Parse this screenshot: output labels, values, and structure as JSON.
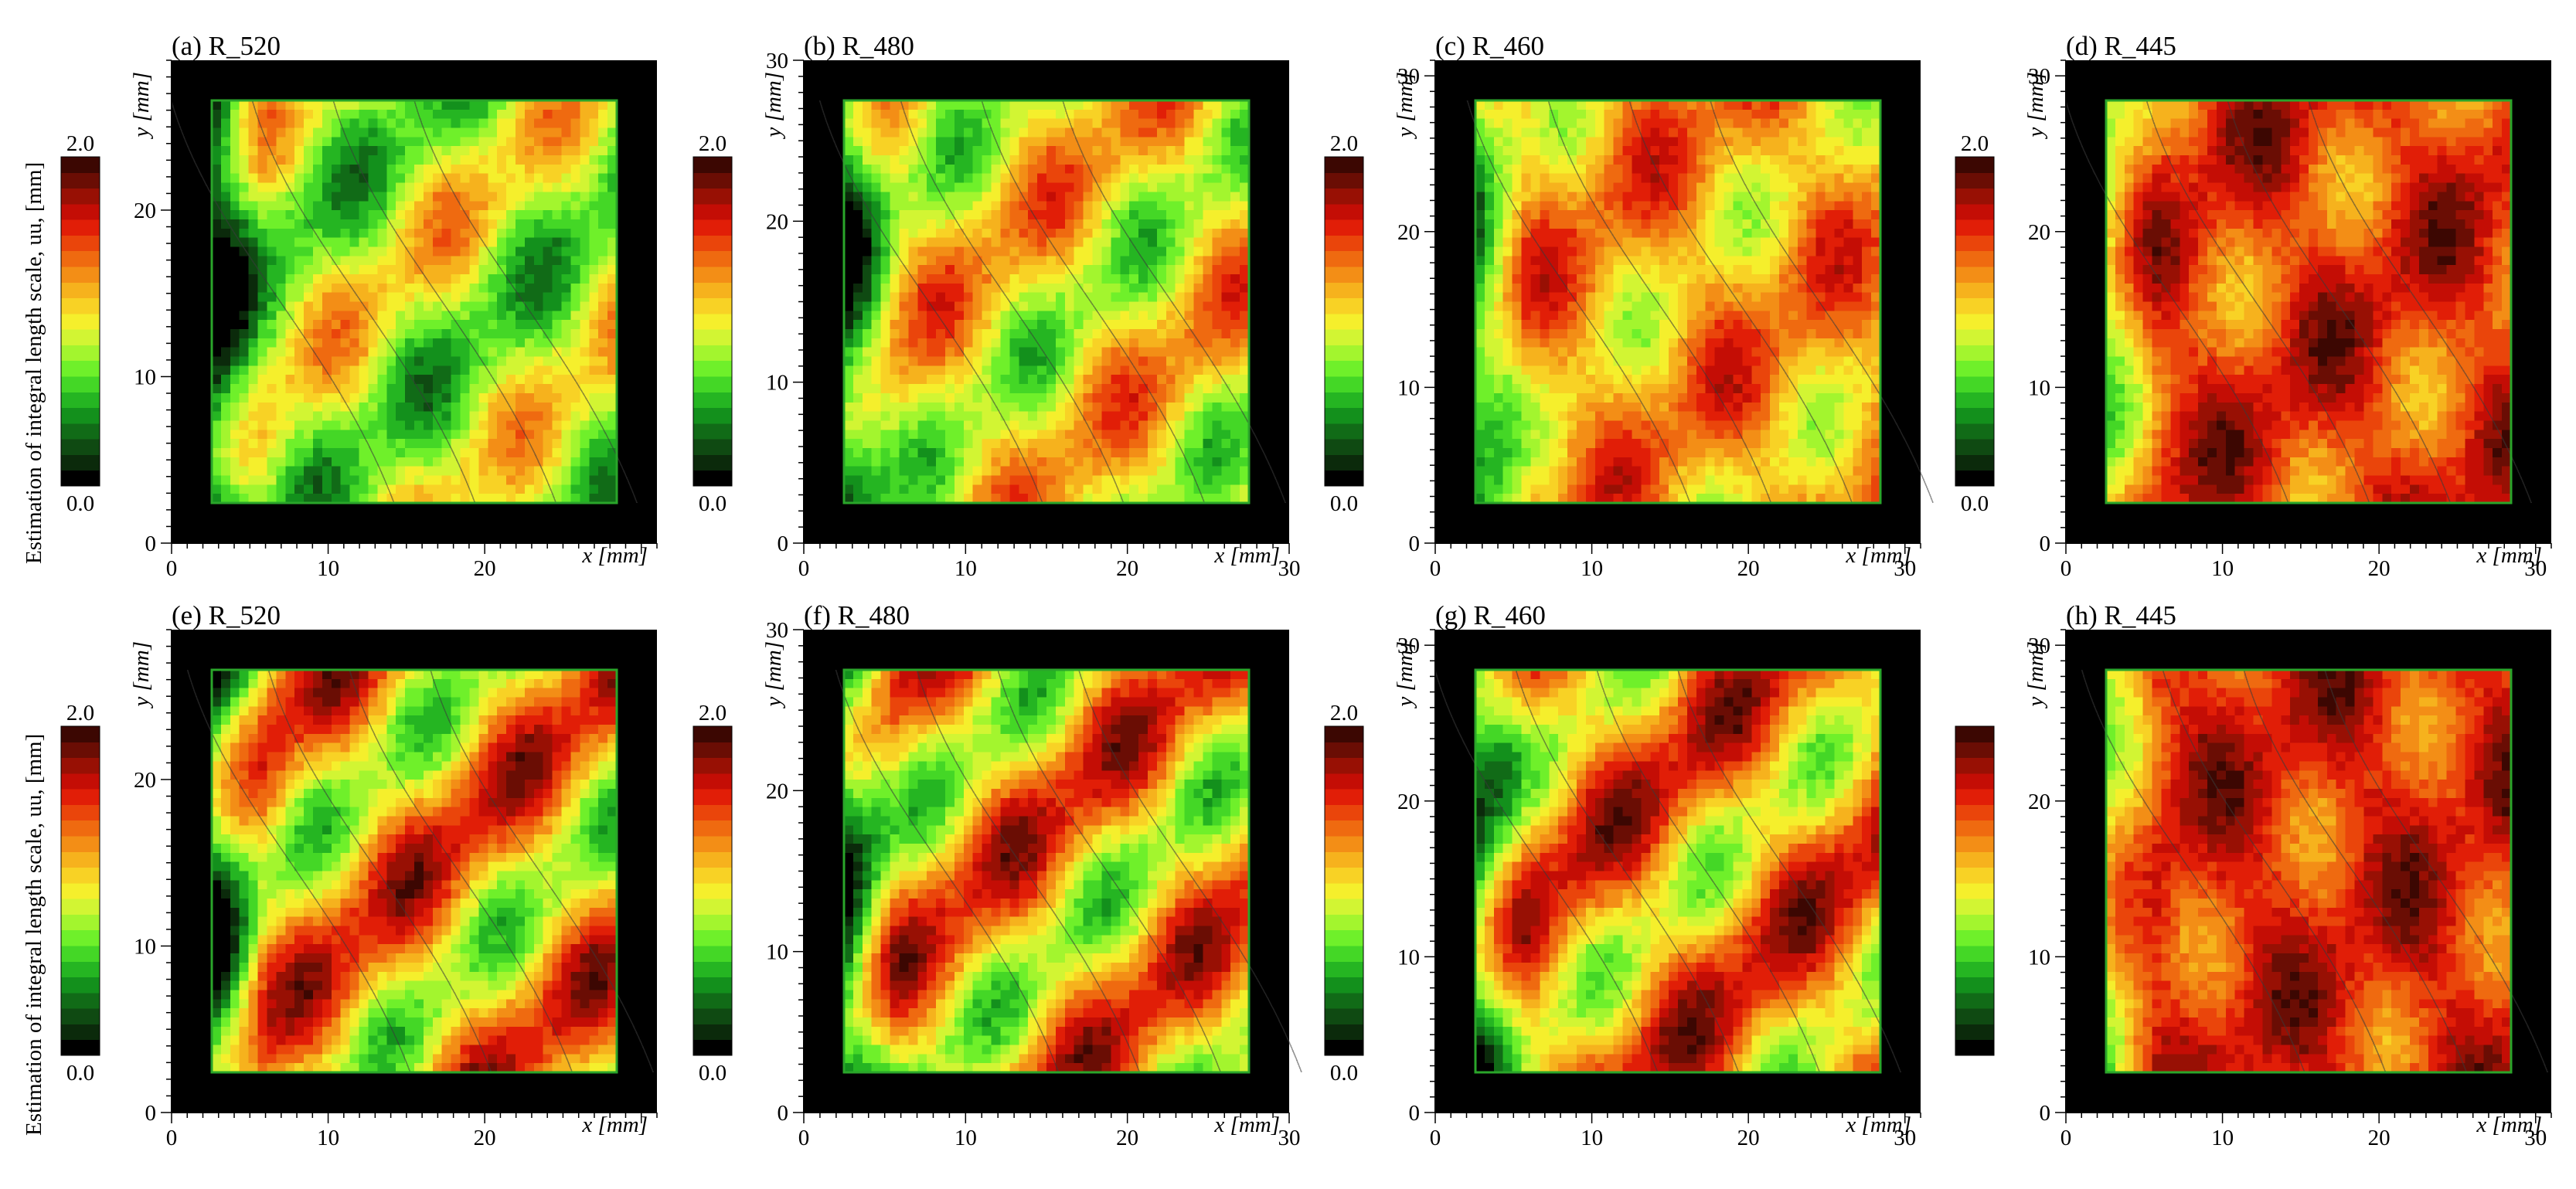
{
  "figure": {
    "row_ylabels": [
      "Estimation of integral length scale, uu, [mm]",
      "Estimation of integral length scale, uu, [mm]"
    ]
  },
  "chart_data": [
    {
      "type": "heatmap",
      "panel_label": "(a)",
      "title": "R_520",
      "xlabel": "x [mm]",
      "ylabel": "y [mm]",
      "xlim": [
        0,
        31
      ],
      "ylim": [
        0,
        29
      ],
      "xticks": [
        "0",
        "10",
        "20"
      ],
      "yticks": [
        "0",
        "10",
        "20"
      ],
      "colorbar": {
        "min": "0.0",
        "max": "2.0",
        "range": [
          0,
          2
        ]
      },
      "level": 0.85,
      "stripe": 0.4
    },
    {
      "type": "heatmap",
      "panel_label": "(b)",
      "title": "R_480",
      "xlabel": "x [mm]",
      "ylabel": "y [mm]",
      "xlim": [
        0,
        30
      ],
      "ylim": [
        0,
        30
      ],
      "xticks": [
        "0",
        "10",
        "20",
        "30"
      ],
      "yticks": [
        "0",
        "10",
        "20",
        "30"
      ],
      "colorbar": {
        "min": "0.0",
        "max": "2.0",
        "range": [
          0,
          2
        ]
      },
      "level": 1.05,
      "stripe": 0.4
    },
    {
      "type": "heatmap",
      "panel_label": "(c)",
      "title": "R_460",
      "xlabel": "x [mm]",
      "ylabel": "y [mm]",
      "xlim": [
        0,
        31
      ],
      "ylim": [
        0,
        31
      ],
      "xticks": [
        "0",
        "10",
        "20",
        "30"
      ],
      "yticks": [
        "0",
        "10",
        "20",
        "30"
      ],
      "colorbar": {
        "min": "0.0",
        "max": "2.0",
        "range": [
          0,
          2
        ]
      },
      "level": 1.25,
      "stripe": 0.3
    },
    {
      "type": "heatmap",
      "panel_label": "(d)",
      "title": "R_445",
      "xlabel": "x [mm]",
      "ylabel": "y [mm]",
      "xlim": [
        0,
        31
      ],
      "ylim": [
        0,
        31
      ],
      "xticks": [
        "0",
        "10",
        "20",
        "30"
      ],
      "yticks": [
        "0",
        "10",
        "20",
        "30"
      ],
      "colorbar": {
        "min": "0.0",
        "max": "2.0",
        "range": [
          0,
          2
        ]
      },
      "level": 1.55,
      "stripe": 0.25
    },
    {
      "type": "heatmap",
      "panel_label": "(e)",
      "title": "R_520",
      "xlabel": "x [mm]",
      "ylabel": "y [mm]",
      "xlim": [
        0,
        31
      ],
      "ylim": [
        0,
        29
      ],
      "xticks": [
        "0",
        "10",
        "20"
      ],
      "yticks": [
        "0",
        "10",
        "20"
      ],
      "colorbar": {
        "min": "0.0",
        "max": "2.0",
        "range": [
          0,
          2
        ]
      },
      "level": 1.2,
      "stripe": 0.55
    },
    {
      "type": "heatmap",
      "panel_label": "(f)",
      "title": "R_480",
      "xlabel": "x [mm]",
      "ylabel": "y [mm]",
      "xlim": [
        0,
        30
      ],
      "ylim": [
        0,
        30
      ],
      "xticks": [
        "0",
        "10",
        "20",
        "30"
      ],
      "yticks": [
        "0",
        "10",
        "20",
        "30"
      ],
      "colorbar": {
        "min": "0.0",
        "max": "2.0",
        "range": [
          0,
          2
        ]
      },
      "level": 1.2,
      "stripe": 0.55
    },
    {
      "type": "heatmap",
      "panel_label": "(g)",
      "title": "R_460",
      "xlabel": "x [mm]",
      "ylabel": "y [mm]",
      "xlim": [
        0,
        31
      ],
      "ylim": [
        0,
        31
      ],
      "xticks": [
        "0",
        "10",
        "20",
        "30"
      ],
      "yticks": [
        "0",
        "10",
        "20",
        "30"
      ],
      "colorbar": {
        "min": "0.0",
        "max": "2.0",
        "range": [
          0,
          2
        ]
      },
      "level": 1.3,
      "stripe": 0.5
    },
    {
      "type": "heatmap",
      "panel_label": "(h)",
      "title": "R_445",
      "xlabel": "x [mm]",
      "ylabel": "y [mm]",
      "xlim": [
        0,
        31
      ],
      "ylim": [
        0,
        31
      ],
      "xticks": [
        "0",
        "10",
        "20",
        "30"
      ],
      "yticks": [
        "0",
        "10",
        "20",
        "30"
      ],
      "colorbar": {
        "min": "",
        "max": "",
        "range": [
          0,
          2
        ]
      },
      "level": 1.6,
      "stripe": 0.2
    }
  ],
  "colors": {
    "background": "#ffffff",
    "frame": "#000000",
    "boundary": "#2aa52a",
    "contour": "#3a3a3a",
    "colormap": [
      "#000000",
      "#0b2a0b",
      "#0f4a12",
      "#116b17",
      "#13901c",
      "#25b522",
      "#44d726",
      "#6ff02a",
      "#a3f52e",
      "#d2f533",
      "#f5ef2c",
      "#f8d225",
      "#f6b21d",
      "#f38e16",
      "#ef6a10",
      "#ea450b",
      "#e11e07",
      "#c40d05",
      "#981004",
      "#6a0d04",
      "#3c0702"
    ]
  }
}
